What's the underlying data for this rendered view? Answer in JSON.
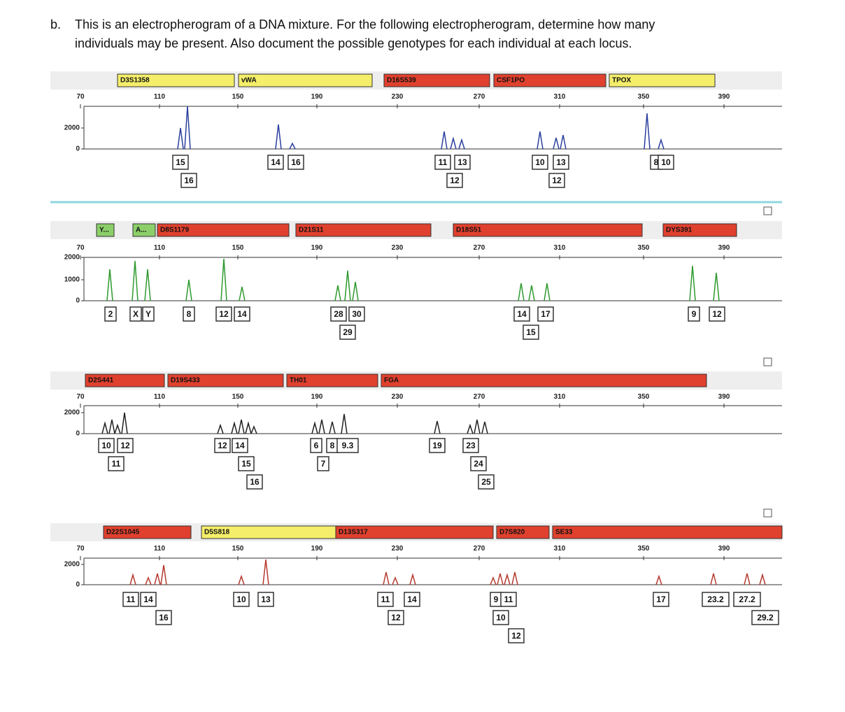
{
  "question": {
    "label": "b.",
    "lines": [
      "This is an electropherogram of a DNA mixture.  For the following electropherogram, determine how many",
      "individuals may be present.  Also document the possible genotypes for each individual at each locus."
    ]
  },
  "panels": [
    {
      "loci": [
        "D3S1358",
        "vWA",
        "D16S539",
        "CSF1PO",
        "TPOX"
      ],
      "x_ticks": [
        "70",
        "110",
        "150",
        "190",
        "230",
        "270",
        "310",
        "350",
        "390"
      ],
      "y_ticks": [
        "2000",
        "0"
      ],
      "alleles": [
        "15",
        "16",
        "14",
        "16",
        "11",
        "13",
        "12",
        "10",
        "13",
        "12",
        "8",
        "10"
      ]
    },
    {
      "loci": [
        "Y...",
        "A...",
        "D8S1179",
        "D21S11",
        "D18S51",
        "DYS391"
      ],
      "x_ticks": [
        "70",
        "110",
        "150",
        "190",
        "230",
        "270",
        "310",
        "350",
        "390"
      ],
      "y_ticks": [
        "2000",
        "1000",
        "0"
      ],
      "alleles": [
        "2",
        "X",
        "Y",
        "8",
        "12",
        "14",
        "28",
        "30",
        "29",
        "14",
        "17",
        "15",
        "9",
        "12"
      ]
    },
    {
      "loci": [
        "D2S441",
        "D19S433",
        "TH01",
        "FGA"
      ],
      "x_ticks": [
        "70",
        "110",
        "150",
        "190",
        "230",
        "270",
        "310",
        "350",
        "390"
      ],
      "y_ticks": [
        "2000",
        "0"
      ],
      "alleles": [
        "10",
        "12",
        "11",
        "12",
        "14",
        "15",
        "16",
        "6",
        "8",
        "9.3",
        "7",
        "19",
        "23",
        "24",
        "25"
      ]
    },
    {
      "loci": [
        "D22S1045",
        "D5S818",
        "D13S317",
        "D7S820",
        "SE33"
      ],
      "x_ticks": [
        "70",
        "110",
        "150",
        "190",
        "230",
        "270",
        "310",
        "350",
        "390"
      ],
      "y_ticks": [
        "2000",
        "0"
      ],
      "alleles": [
        "11",
        "14",
        "16",
        "10",
        "13",
        "11",
        "14",
        "12",
        "9",
        "11",
        "10",
        "12",
        "17",
        "23.2",
        "27.2",
        "29.2"
      ]
    }
  ]
}
